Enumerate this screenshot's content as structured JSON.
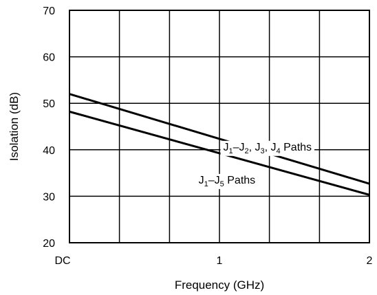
{
  "chart_data": {
    "type": "line",
    "title": "",
    "xlabel": "Frequency (GHz)",
    "ylabel": "Isolation (dB)",
    "xlim": [
      0,
      2
    ],
    "ylim": [
      20,
      70
    ],
    "x_ticks": [
      {
        "value": 0,
        "label": "DC"
      },
      {
        "value": 1,
        "label": "1"
      },
      {
        "value": 2,
        "label": "2"
      }
    ],
    "y_ticks": [
      20,
      30,
      40,
      50,
      60,
      70
    ],
    "x_gridlines": [
      0.333,
      0.667,
      1,
      1.333,
      1.667
    ],
    "y_gridlines": [
      30,
      40,
      50,
      60
    ],
    "grid": true,
    "series": [
      {
        "name": "J1–J2, J3, J4 Paths",
        "x": [
          0,
          2
        ],
        "y": [
          52,
          32.7
        ]
      },
      {
        "name": "J1–J5 Paths",
        "x": [
          0,
          2
        ],
        "y": [
          48.2,
          30.3
        ]
      }
    ],
    "annotations": [
      {
        "series": 0,
        "parts": [
          "J",
          "1",
          "–J",
          "2",
          ", J",
          "3",
          ", J",
          "4",
          " Paths"
        ],
        "at_x": 1.32
      },
      {
        "series": 1,
        "parts": [
          "J",
          "1",
          "–J",
          "5",
          " Paths"
        ],
        "at_x": 1.05
      }
    ]
  }
}
